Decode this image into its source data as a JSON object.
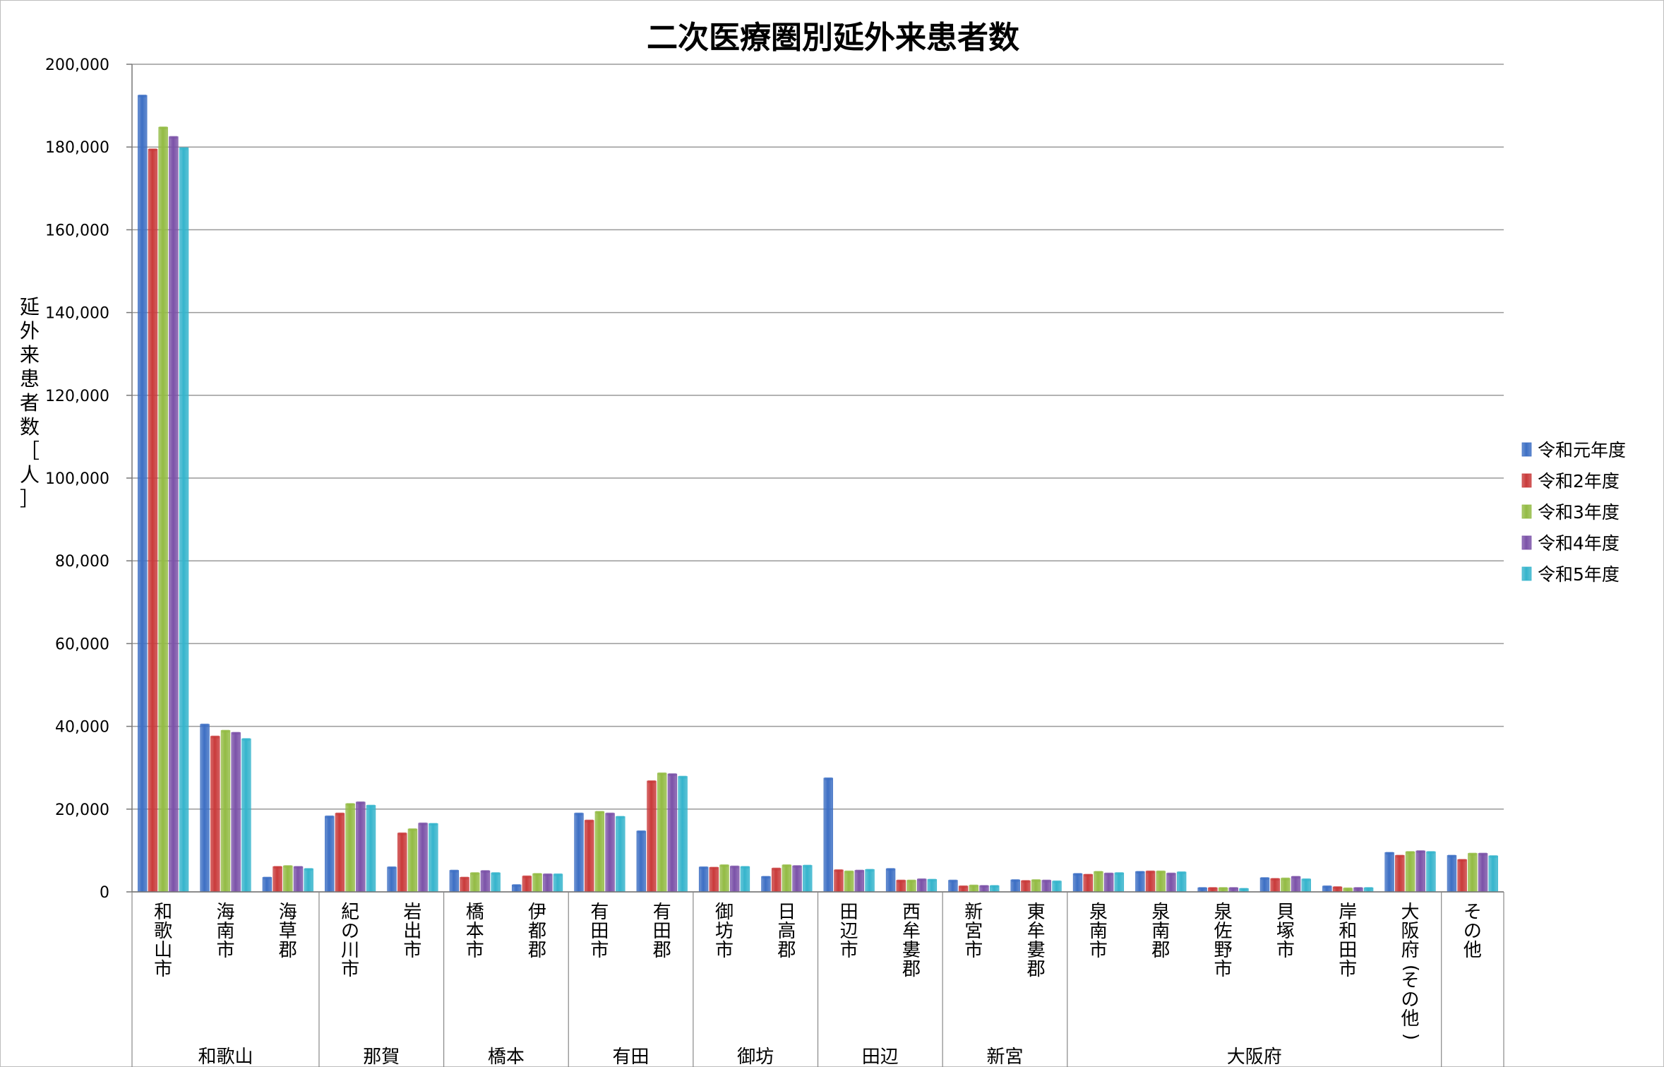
{
  "chart_data": {
    "type": "bar",
    "title": "二次医療圏別延外来患者数",
    "ylabel": "延外来患者数［人］",
    "xlabel": "",
    "ylim": [
      0,
      200000
    ],
    "yticks": [
      "0",
      "20,000",
      "40,000",
      "60,000",
      "80,000",
      "100,000",
      "120,000",
      "140,000",
      "160,000",
      "180,000",
      "200,000"
    ],
    "grid": true,
    "legend_position": "right",
    "categories": [
      "和歌山市",
      "海南市",
      "海草郡",
      "紀の川市",
      "岩出市",
      "橋本市",
      "伊都郡",
      "有田市",
      "有田郡",
      "御坊市",
      "日高郡",
      "田辺市",
      "西牟婁郡",
      "新宮市",
      "東牟婁郡",
      "泉南市",
      "泉南郡",
      "泉佐野市",
      "貝塚市",
      "岸和田市",
      "大阪府(その他)",
      "その他"
    ],
    "groups": [
      {
        "label": "和歌山",
        "count": 3
      },
      {
        "label": "那賀",
        "count": 2
      },
      {
        "label": "橋本",
        "count": 2
      },
      {
        "label": "有田",
        "count": 2
      },
      {
        "label": "御坊",
        "count": 2
      },
      {
        "label": "田辺",
        "count": 2
      },
      {
        "label": "新宮",
        "count": 2
      },
      {
        "label": "大阪府",
        "count": 6
      },
      {
        "label": "",
        "count": 1
      }
    ],
    "series": [
      {
        "name": "令和元年度",
        "color": "#3d6fc4",
        "values": [
          192500,
          40500,
          3500,
          18300,
          6000,
          5200,
          1700,
          19000,
          14700,
          6000,
          3700,
          27500,
          5600,
          2800,
          2900,
          4400,
          4900,
          1000,
          3400,
          1400,
          9500,
          8800
        ]
      },
      {
        "name": "令和2年度",
        "color": "#c93a3a",
        "values": [
          179500,
          37600,
          6100,
          19000,
          14200,
          3500,
          3800,
          17300,
          26800,
          5900,
          5700,
          5300,
          2800,
          1400,
          2700,
          4200,
          5000,
          1000,
          3200,
          1200,
          8800,
          7800
        ]
      },
      {
        "name": "令和3年度",
        "color": "#93bb44",
        "values": [
          184800,
          39000,
          6300,
          21300,
          15200,
          4600,
          4400,
          19400,
          28700,
          6500,
          6500,
          5000,
          2800,
          1600,
          2900,
          4900,
          5000,
          1000,
          3300,
          900,
          9700,
          9300
        ]
      },
      {
        "name": "令和4年度",
        "color": "#7b52a8",
        "values": [
          182500,
          38500,
          6100,
          21700,
          16600,
          5100,
          4300,
          19000,
          28500,
          6200,
          6300,
          5200,
          3100,
          1500,
          2800,
          4500,
          4500,
          1000,
          3700,
          1000,
          9900,
          9300
        ]
      },
      {
        "name": "令和5年度",
        "color": "#35b4cc",
        "values": [
          179800,
          37000,
          5600,
          20900,
          16500,
          4600,
          4300,
          18200,
          27900,
          6100,
          6400,
          5400,
          3000,
          1500,
          2600,
          4600,
          4800,
          800,
          3100,
          1000,
          9700,
          8700
        ]
      }
    ]
  }
}
